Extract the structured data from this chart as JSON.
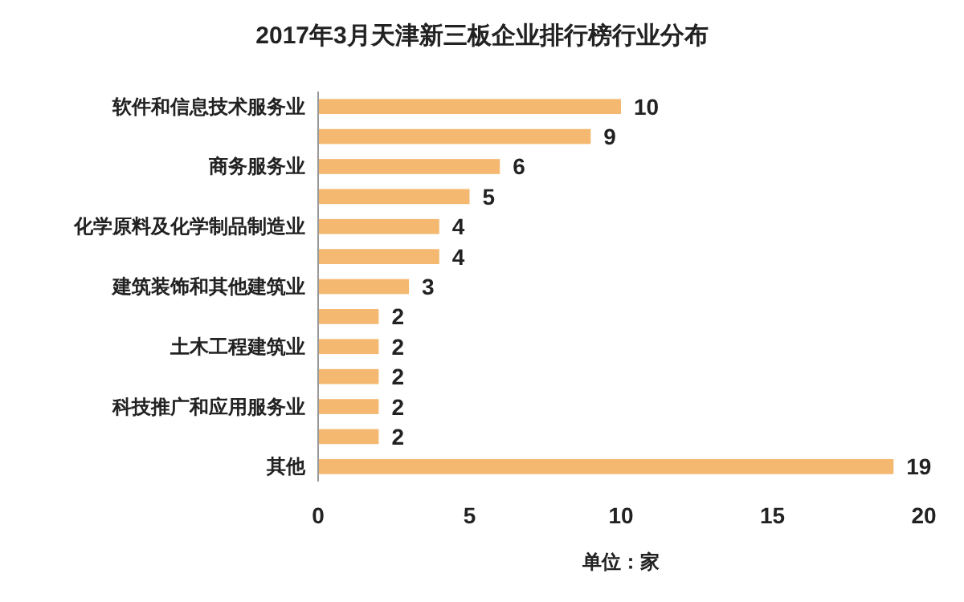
{
  "chart_data": {
    "type": "bar",
    "orientation": "horizontal",
    "title": "2017年3月天津新三板企业排行榜行业分布",
    "xlabel": "单位：家",
    "categories": [
      "软件和信息技术服务业",
      null,
      "商务服务业",
      null,
      "化学原料及化学制品制造业",
      null,
      "建筑装饰和其他建筑业",
      null,
      "土木工程建筑业",
      null,
      "科技推广和应用服务业",
      null,
      "其他"
    ],
    "values": [
      10,
      9,
      6,
      5,
      4,
      4,
      3,
      2,
      2,
      2,
      2,
      2,
      19
    ],
    "color": "#f4b870",
    "xlim": [
      0,
      20
    ],
    "xticks": [
      0,
      5,
      10,
      15,
      20
    ],
    "data_labels": true,
    "grid": false
  }
}
